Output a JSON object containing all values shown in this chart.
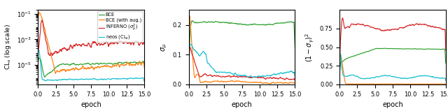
{
  "colors": {
    "BCE": "#2ca02c",
    "BCE_aug": "#ff7f0e",
    "INFERNO": "#d62728",
    "neos": "#17becf"
  },
  "legend_labels": [
    "BCE",
    "BCE (with aug.)",
    "INFERNO ($\\sigma_{\\mu}^{2}$)",
    "neos ($\\mathrm{CL}_s$)"
  ],
  "xlabel": "epoch",
  "subplot1_ylabel": "$\\mathrm{CL}_s$ (log scale)",
  "subplot2_ylabel": "$\\sigma_{\\mu}$",
  "subplot3_ylabel": "$(1 - \\sigma_{\\gamma})^2$",
  "xlim": [
    0,
    15
  ],
  "n_points": 500,
  "seed": 42
}
